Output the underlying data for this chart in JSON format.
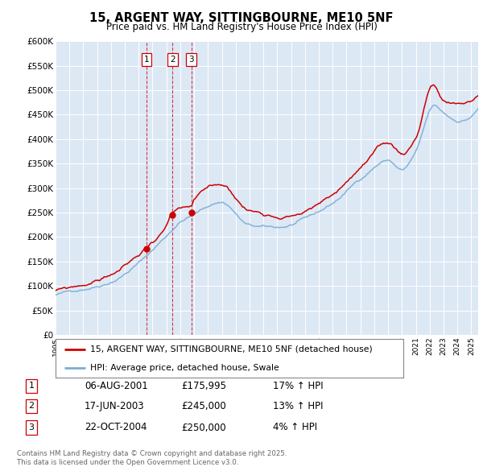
{
  "title": "15, ARGENT WAY, SITTINGBOURNE, ME10 5NF",
  "subtitle": "Price paid vs. HM Land Registry's House Price Index (HPI)",
  "legend_line1": "15, ARGENT WAY, SITTINGBOURNE, ME10 5NF (detached house)",
  "legend_line2": "HPI: Average price, detached house, Swale",
  "red_color": "#cc0000",
  "blue_color": "#7aadd4",
  "plot_bg": "#dde8f5",
  "yticks": [
    0,
    50000,
    100000,
    150000,
    200000,
    250000,
    300000,
    350000,
    400000,
    450000,
    500000,
    550000,
    600000
  ],
  "ylabels": [
    "£0",
    "£50K",
    "£100K",
    "£150K",
    "£200K",
    "£250K",
    "£300K",
    "£350K",
    "£400K",
    "£450K",
    "£500K",
    "£550K",
    "£600K"
  ],
  "xmin": 1995,
  "xmax": 2025.5,
  "ymin": 0,
  "ymax": 600000,
  "transactions": [
    {
      "label": "1",
      "date": "06-AUG-2001",
      "price": 175995,
      "pct": "17%",
      "x": 2001.58
    },
    {
      "label": "2",
      "date": "17-JUN-2003",
      "price": 245000,
      "pct": "13%",
      "x": 2003.45
    },
    {
      "label": "3",
      "date": "22-OCT-2004",
      "price": 250000,
      "pct": "4%",
      "x": 2004.8
    }
  ],
  "footer1": "Contains HM Land Registry data © Crown copyright and database right 2025.",
  "footer2": "This data is licensed under the Open Government Licence v3.0.",
  "table_rows": [
    {
      "num": "1",
      "date": "06-AUG-2001",
      "price": "£175,995",
      "pct": "17% ↑ HPI"
    },
    {
      "num": "2",
      "date": "17-JUN-2003",
      "price": "£245,000",
      "pct": "13% ↑ HPI"
    },
    {
      "num": "3",
      "date": "22-OCT-2004",
      "price": "£250,000",
      "pct": "4% ↑ HPI"
    }
  ]
}
